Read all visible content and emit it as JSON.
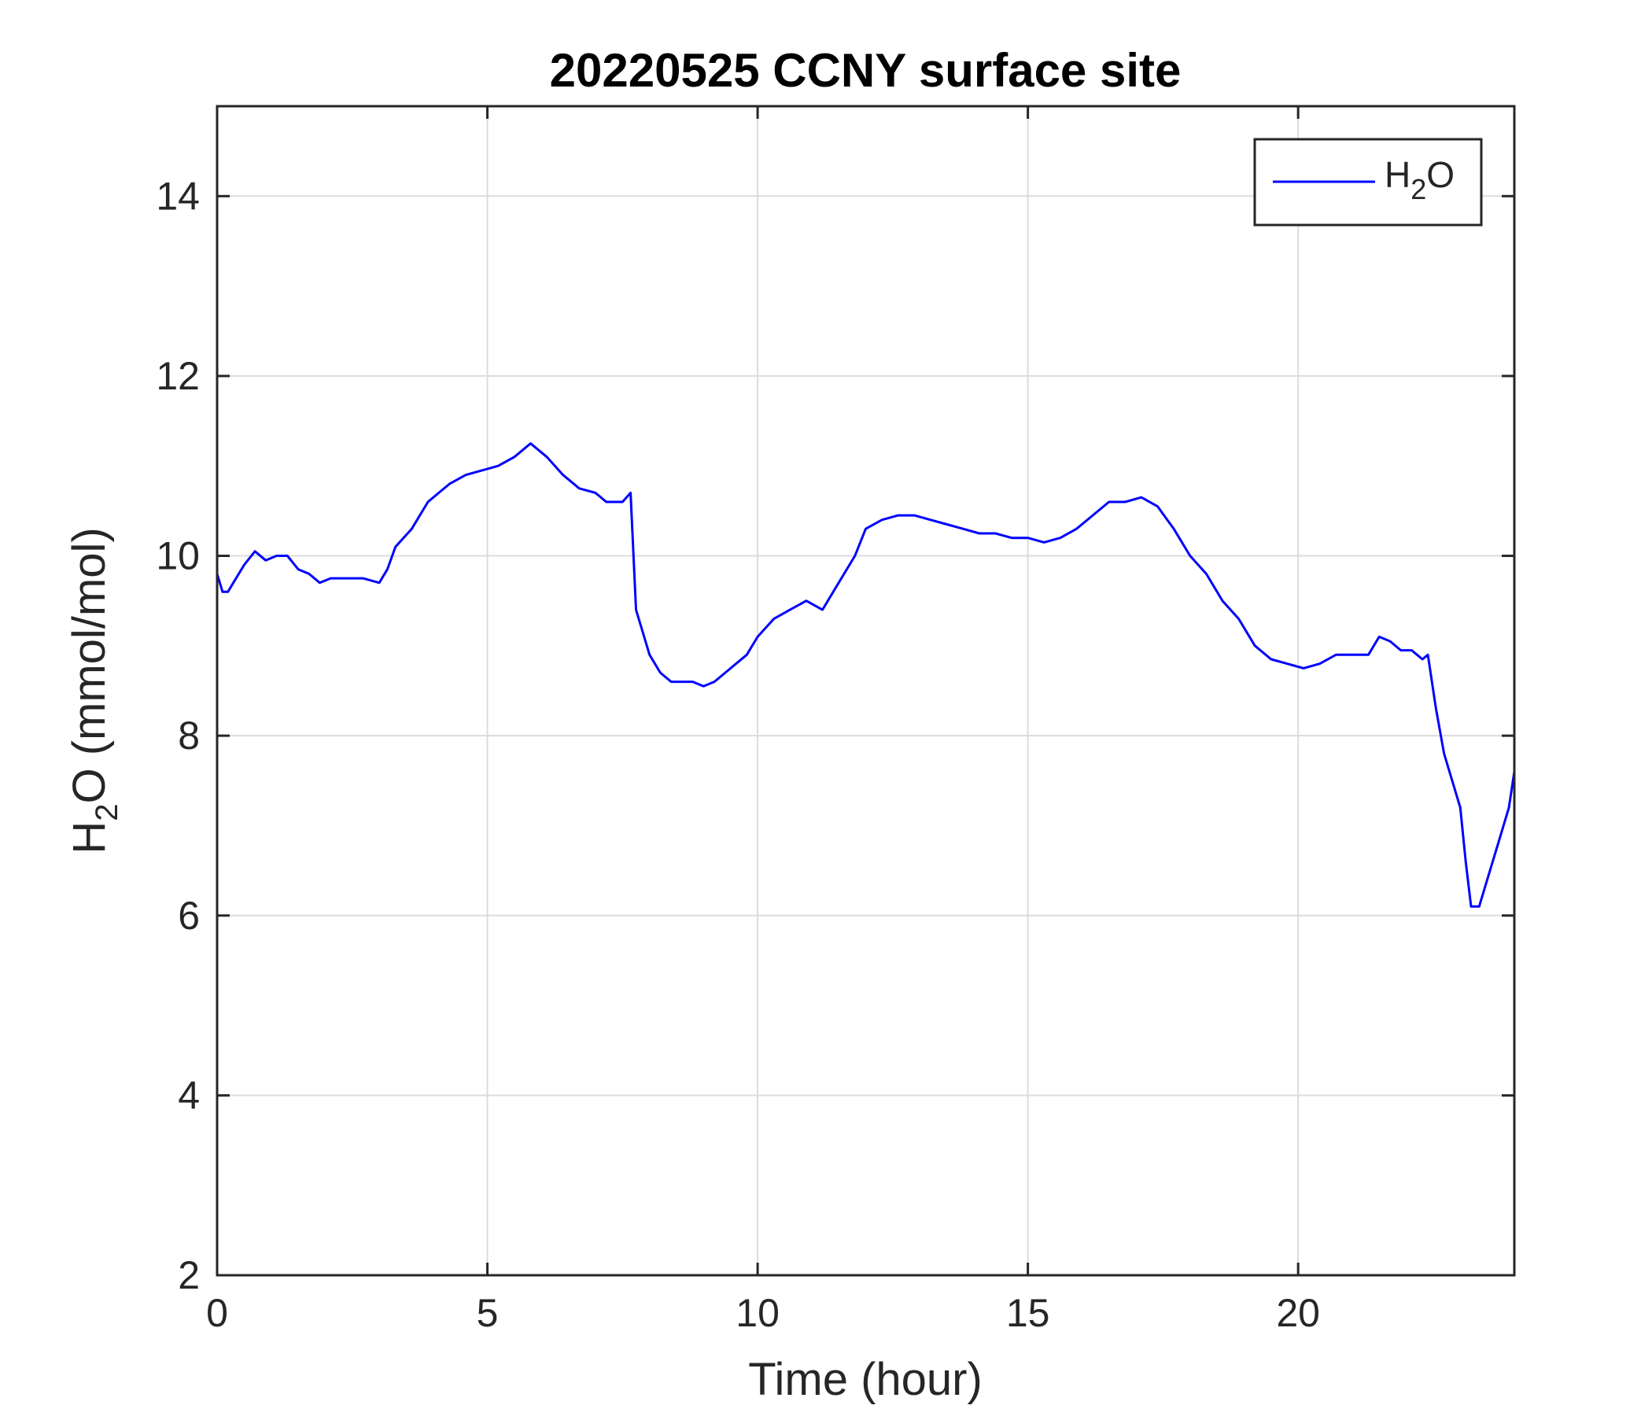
{
  "chart_data": {
    "type": "line",
    "title": "20220525 CCNY surface site",
    "xlabel": "Time (hour)",
    "ylabel_main_left": "H",
    "ylabel_sub": "2",
    "ylabel_main_right": "O (mmol/mol)",
    "xlim": [
      0,
      24
    ],
    "ylim": [
      2,
      15
    ],
    "xticks": [
      0,
      5,
      10,
      15,
      20
    ],
    "yticks": [
      2,
      4,
      6,
      8,
      10,
      12,
      14
    ],
    "grid": true,
    "legend_position": "top-right",
    "series": [
      {
        "name_main_left": "H",
        "name_sub": "2",
        "name_main_right": "O",
        "color": "#0000ff",
        "x": [
          0,
          0.1,
          0.2,
          0.3,
          0.5,
          0.7,
          0.9,
          1.1,
          1.3,
          1.5,
          1.7,
          1.9,
          2.1,
          2.4,
          2.7,
          3.0,
          3.15,
          3.3,
          3.6,
          3.9,
          4.1,
          4.3,
          4.6,
          4.9,
          5.2,
          5.5,
          5.8,
          6.1,
          6.4,
          6.7,
          7.0,
          7.2,
          7.5,
          7.65,
          7.75,
          7.85,
          8.0,
          8.2,
          8.4,
          8.6,
          8.8,
          9.0,
          9.2,
          9.4,
          9.6,
          9.8,
          10.0,
          10.3,
          10.6,
          10.9,
          11.2,
          11.5,
          11.8,
          12.0,
          12.3,
          12.6,
          12.9,
          13.2,
          13.5,
          13.8,
          14.1,
          14.4,
          14.7,
          15.0,
          15.3,
          15.6,
          15.9,
          16.2,
          16.5,
          16.8,
          17.1,
          17.4,
          17.7,
          18.0,
          18.3,
          18.6,
          18.9,
          19.2,
          19.5,
          19.8,
          20.1,
          20.4,
          20.7,
          21.0,
          21.3,
          21.5,
          21.7,
          21.9,
          22.1,
          22.2,
          22.3,
          22.4,
          22.55,
          22.7,
          22.85,
          23.0,
          23.1,
          23.2,
          23.35,
          23.5,
          23.7,
          23.9,
          24.0
        ],
        "y": [
          9.8,
          9.6,
          9.6,
          9.7,
          9.9,
          10.05,
          9.95,
          10.0,
          10.0,
          9.85,
          9.8,
          9.7,
          9.75,
          9.75,
          9.75,
          9.7,
          9.85,
          10.1,
          10.3,
          10.6,
          10.7,
          10.8,
          10.9,
          10.95,
          11.0,
          11.1,
          11.25,
          11.1,
          10.9,
          10.75,
          10.7,
          10.6,
          10.6,
          10.7,
          9.4,
          9.2,
          8.9,
          8.7,
          8.6,
          8.6,
          8.6,
          8.55,
          8.6,
          8.7,
          8.8,
          8.9,
          9.1,
          9.3,
          9.4,
          9.5,
          9.4,
          9.7,
          10.0,
          10.3,
          10.4,
          10.45,
          10.45,
          10.4,
          10.35,
          10.3,
          10.25,
          10.25,
          10.2,
          10.2,
          10.15,
          10.2,
          10.3,
          10.45,
          10.6,
          10.6,
          10.65,
          10.55,
          10.3,
          10.0,
          9.8,
          9.5,
          9.3,
          9.0,
          8.85,
          8.8,
          8.75,
          8.8,
          8.9,
          8.9,
          8.9,
          9.1,
          9.05,
          8.95,
          8.95,
          8.9,
          8.85,
          8.9,
          8.3,
          7.8,
          7.5,
          7.2,
          6.6,
          6.1,
          6.1,
          6.4,
          6.8,
          7.2,
          7.6
        ]
      }
    ]
  }
}
